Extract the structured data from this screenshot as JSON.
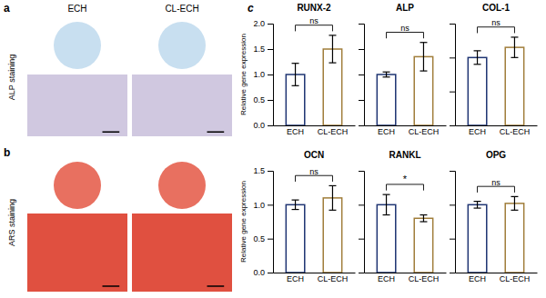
{
  "annotations": [
    "a",
    "b",
    "c",
    "ECH",
    "CL-ECH",
    "ALP staining",
    "ARS staining"
  ],
  "chart_data": [
    {
      "type": "bar",
      "title": "RUNX-2",
      "ylabel": "Relative gene expression",
      "categories": [
        "ECH",
        "CL-ECH"
      ],
      "values": [
        1.0,
        1.5
      ],
      "errors": [
        0.22,
        0.27
      ],
      "colors": [
        "#1e3472",
        "#a07d3a"
      ],
      "ylim": [
        0,
        2.0
      ],
      "yticks": [
        {
          "value": 0.0,
          "label": "0.0"
        },
        0.5,
        {
          "value": 1.0,
          "label": "1.0"
        },
        1.5,
        {
          "value": 2.0,
          "label": "2.0"
        }
      ],
      "annotations": [
        "ns"
      ]
    },
    {
      "type": "bar",
      "title": "ALP",
      "categories": [
        "ECH",
        "CL-ECH"
      ],
      "values": [
        1.0,
        1.35
      ],
      "errors": [
        0.05,
        0.28
      ],
      "colors": [
        "#1e3472",
        "#a07d3a"
      ],
      "ylim": [
        0,
        2.0
      ],
      "yticks": [
        {
          "value": 0.0,
          "label": "0.0"
        },
        0.5,
        {
          "value": 1.0,
          "label": "1.0"
        },
        1.5,
        {
          "value": 2.0,
          "label": "2.0"
        }
      ],
      "tick_labels": "x",
      "annotations": [
        "ns"
      ]
    },
    {
      "type": "bar",
      "title": "COL-1",
      "categories": [
        "ECH",
        "CL-ECH"
      ],
      "values": [
        1.0,
        1.15
      ],
      "errors": [
        0.1,
        0.15
      ],
      "colors": [
        "#1e3472",
        "#a07d3a"
      ],
      "ylim": [
        0,
        1.5
      ],
      "yticks": [
        {
          "value": 0.0,
          "label": "0.0"
        },
        0.5,
        {
          "value": 1.0,
          "label": "1.0"
        },
        1.5
      ],
      "tick_labels": "x",
      "annotations": [
        "ns"
      ]
    },
    {
      "type": "bar",
      "title": "OCN",
      "ylabel": "Relative gene expression",
      "categories": [
        "ECH",
        "CL-ECH"
      ],
      "values": [
        1.0,
        1.1
      ],
      "errors": [
        0.07,
        0.18
      ],
      "colors": [
        "#1e3472",
        "#a07d3a"
      ],
      "ylim": [
        0,
        1.5
      ],
      "yticks": [
        {
          "value": 0.0,
          "label": "0.0"
        },
        0.5,
        {
          "value": 1.0,
          "label": "1.0"
        },
        1.5
      ],
      "annotations": [
        "ns"
      ]
    },
    {
      "type": "bar",
      "title": "RANKL",
      "categories": [
        "ECH",
        "CL-ECH"
      ],
      "values": [
        1.0,
        0.8
      ],
      "errors": [
        0.15,
        0.05
      ],
      "colors": [
        "#1e3472",
        "#a07d3a"
      ],
      "ylim": [
        0,
        1.5
      ],
      "yticks": [
        {
          "value": 0.0,
          "label": "0.0"
        },
        0.5,
        {
          "value": 1.0,
          "label": "1.0"
        },
        1.5
      ],
      "tick_labels": "x",
      "annotations": [
        "*"
      ]
    },
    {
      "type": "bar",
      "title": "OPG",
      "categories": [
        "ECH",
        "CL-ECH"
      ],
      "values": [
        1.0,
        1.02
      ],
      "errors": [
        0.05,
        0.1
      ],
      "colors": [
        "#1e3472",
        "#a07d3a"
      ],
      "ylim": [
        0,
        1.5
      ],
      "yticks": [
        {
          "value": 0.0,
          "label": "0.0"
        },
        0.5,
        {
          "value": 1.0,
          "label": "1.0"
        },
        1.5
      ],
      "tick_labels": "x",
      "annotations": [
        "ns"
      ]
    }
  ]
}
